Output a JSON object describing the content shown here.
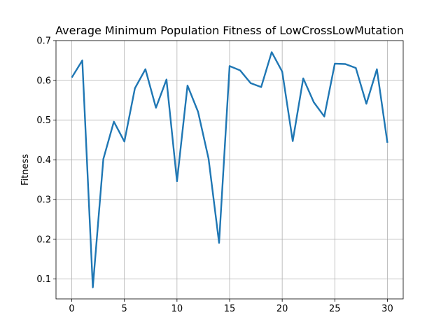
{
  "chart_data": {
    "type": "line",
    "title": "Average Minimum Population Fitness of LowCrossLowMutation",
    "xlabel": "",
    "ylabel": "Fitness",
    "xlim": [
      -1.5,
      31.5
    ],
    "ylim": [
      0.05,
      0.7
    ],
    "grid": true,
    "xticks": [
      0,
      5,
      10,
      15,
      20,
      25,
      30
    ],
    "xtick_labels": [
      "0",
      "5",
      "10",
      "15",
      "20",
      "25",
      "30"
    ],
    "yticks": [
      0.1,
      0.2,
      0.3,
      0.4,
      0.5,
      0.6,
      0.7
    ],
    "ytick_labels": [
      "0.1",
      "0.2",
      "0.3",
      "0.4",
      "0.5",
      "0.6",
      "0.7"
    ],
    "line_color": "#1f77b4",
    "x": [
      0,
      1,
      2,
      3,
      4,
      5,
      6,
      7,
      8,
      9,
      10,
      11,
      12,
      13,
      14,
      15,
      16,
      17,
      18,
      19,
      20,
      21,
      22,
      23,
      24,
      25,
      26,
      27,
      28,
      29,
      30
    ],
    "series": [
      {
        "values": [
          0.607,
          0.65,
          0.079,
          0.402,
          0.496,
          0.446,
          0.58,
          0.628,
          0.531,
          0.602,
          0.346,
          0.587,
          0.521,
          0.403,
          0.191,
          0.636,
          0.625,
          0.593,
          0.583,
          0.671,
          0.622,
          0.447,
          0.605,
          0.545,
          0.509,
          0.642,
          0.641,
          0.631,
          0.541,
          0.628,
          0.443
        ]
      }
    ]
  }
}
